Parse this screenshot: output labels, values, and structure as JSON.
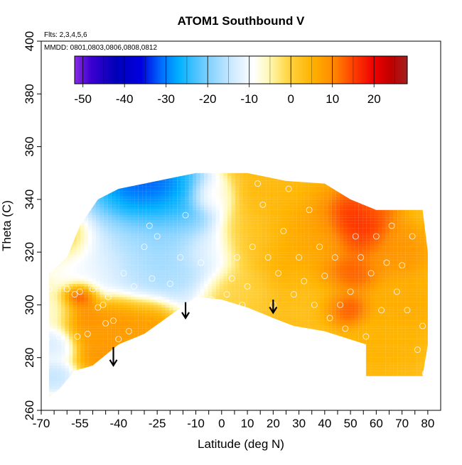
{
  "chart_data": {
    "type": "heatmap",
    "title": "ATOM1 Southbound V",
    "subtitle_flights": "Flts: 2,3,4,5,6",
    "subtitle_dates": "MMDD: 0801,0803,0806,0808,0812",
    "xlabel": "Latitude (deg N)",
    "ylabel": "Theta (C)",
    "xlim": [
      -70,
      85
    ],
    "ylim": [
      260,
      400
    ],
    "x_tick_labels": [
      "-70",
      "-55",
      "-40",
      "-25",
      "-10",
      "0",
      "10",
      "20",
      "30",
      "40",
      "50",
      "60",
      "70",
      "80"
    ],
    "y_tick_labels": [
      "260",
      "280",
      "300",
      "320",
      "340",
      "360",
      "380",
      "400"
    ],
    "colorbar": {
      "range": [
        -52,
        28
      ],
      "tick_labels": [
        "-50",
        "-40",
        "-30",
        "-20",
        "-10",
        "0",
        "10",
        "20"
      ],
      "stops": [
        {
          "value": -52,
          "color": "#8a2be2"
        },
        {
          "value": -48,
          "color": "#3a00d0"
        },
        {
          "value": -42,
          "color": "#0000b8"
        },
        {
          "value": -36,
          "color": "#0000e0"
        },
        {
          "value": -31,
          "color": "#0070ff"
        },
        {
          "value": -27,
          "color": "#00b0ff"
        },
        {
          "value": -20,
          "color": "#7fd0ff"
        },
        {
          "value": -14,
          "color": "#cfeaff"
        },
        {
          "value": -9,
          "color": "#ffffff"
        },
        {
          "value": -5,
          "color": "#fff7b0"
        },
        {
          "value": -1,
          "color": "#ffd84a"
        },
        {
          "value": 5,
          "color": "#ffb300"
        },
        {
          "value": 10,
          "color": "#ff8c00"
        },
        {
          "value": 15,
          "color": "#ff4000"
        },
        {
          "value": 20,
          "color": "#ee0000"
        },
        {
          "value": 24,
          "color": "#c00000"
        },
        {
          "value": 28,
          "color": "#a02020"
        }
      ]
    },
    "field_outline": [
      [
        -67,
        265
      ],
      [
        -67,
        312
      ],
      [
        -60,
        318
      ],
      [
        -55,
        330
      ],
      [
        -48,
        340
      ],
      [
        -40,
        344
      ],
      [
        -30,
        346
      ],
      [
        -20,
        348
      ],
      [
        -10,
        350
      ],
      [
        10,
        350
      ],
      [
        25,
        347
      ],
      [
        40,
        346
      ],
      [
        50,
        340
      ],
      [
        60,
        336
      ],
      [
        70,
        336
      ],
      [
        78,
        336
      ],
      [
        80,
        320
      ],
      [
        80,
        305
      ],
      [
        80,
        295
      ],
      [
        80,
        285
      ],
      [
        78,
        273
      ],
      [
        56,
        273
      ],
      [
        56,
        285
      ],
      [
        40,
        290
      ],
      [
        28,
        292
      ],
      [
        20,
        295
      ],
      [
        10,
        299
      ],
      [
        0,
        302
      ],
      [
        -10,
        303
      ],
      [
        -20,
        296
      ],
      [
        -30,
        289
      ],
      [
        -40,
        285
      ],
      [
        -50,
        277
      ],
      [
        -57,
        275
      ],
      [
        -63,
        268
      ]
    ],
    "features": [
      {
        "lat": -30,
        "theta": 343,
        "value": -40,
        "r": 14
      },
      {
        "lat": -35,
        "theta": 339,
        "value": -30,
        "r": 15
      },
      {
        "lat": -22,
        "theta": 338,
        "value": -28,
        "r": 16
      },
      {
        "lat": -25,
        "theta": 328,
        "value": -22,
        "r": 22
      },
      {
        "lat": -30,
        "theta": 318,
        "value": -18,
        "r": 22
      },
      {
        "lat": -18,
        "theta": 318,
        "value": -17,
        "r": 18
      },
      {
        "lat": -42,
        "theta": 322,
        "value": -14,
        "r": 22
      },
      {
        "lat": -52,
        "theta": 315,
        "value": -8,
        "r": 16
      },
      {
        "lat": -66,
        "theta": 285,
        "value": -14,
        "r": 8
      },
      {
        "lat": -64,
        "theta": 296,
        "value": -8,
        "r": 8
      },
      {
        "lat": -66,
        "theta": 272,
        "value": -16,
        "r": 7
      },
      {
        "lat": -55,
        "theta": 303,
        "value": 22,
        "r": 6
      },
      {
        "lat": -55,
        "theta": 296,
        "value": 12,
        "r": 8
      },
      {
        "lat": -50,
        "theta": 290,
        "value": 8,
        "r": 10
      },
      {
        "lat": -42,
        "theta": 296,
        "value": 10,
        "r": 10
      },
      {
        "lat": -30,
        "theta": 294,
        "value": 9,
        "r": 10
      },
      {
        "lat": -45,
        "theta": 282,
        "value": 9,
        "r": 8
      },
      {
        "lat": -8,
        "theta": 320,
        "value": -8,
        "r": 10
      },
      {
        "lat": -5,
        "theta": 340,
        "value": -6,
        "r": 8
      },
      {
        "lat": 10,
        "theta": 325,
        "value": 2,
        "r": 14
      },
      {
        "lat": 20,
        "theta": 340,
        "value": 4,
        "r": 14
      },
      {
        "lat": 30,
        "theta": 320,
        "value": 6,
        "r": 18
      },
      {
        "lat": 40,
        "theta": 330,
        "value": 8,
        "r": 16
      },
      {
        "lat": 35,
        "theta": 300,
        "value": 3,
        "r": 16
      },
      {
        "lat": 50,
        "theta": 333,
        "value": 22,
        "r": 10
      },
      {
        "lat": 53,
        "theta": 326,
        "value": 18,
        "r": 10
      },
      {
        "lat": 48,
        "theta": 312,
        "value": 15,
        "r": 10
      },
      {
        "lat": 47,
        "theta": 298,
        "value": 17,
        "r": 8
      },
      {
        "lat": 55,
        "theta": 336,
        "value": 12,
        "r": 10
      },
      {
        "lat": 65,
        "theta": 320,
        "value": 9,
        "r": 12
      },
      {
        "lat": 70,
        "theta": 300,
        "value": 6,
        "r": 12
      },
      {
        "lat": 62,
        "theta": 285,
        "value": 5,
        "r": 12
      },
      {
        "lat": 5,
        "theta": 305,
        "value": 0,
        "r": 12
      },
      {
        "lat": -60,
        "theta": 325,
        "value": 8,
        "r": 10
      }
    ],
    "base_value": 3,
    "observations": [
      [
        -68,
        287
      ],
      [
        -67,
        306
      ],
      [
        -65,
        312
      ],
      [
        -63,
        288
      ],
      [
        -60,
        306
      ],
      [
        -57,
        304
      ],
      [
        -56,
        288
      ],
      [
        -55,
        305
      ],
      [
        -52,
        289
      ],
      [
        -50,
        306
      ],
      [
        -48,
        299
      ],
      [
        -46,
        300
      ],
      [
        -45,
        293
      ],
      [
        -44,
        303
      ],
      [
        -42,
        294
      ],
      [
        -40,
        287
      ],
      [
        -38,
        312
      ],
      [
        -36,
        290
      ],
      [
        -34,
        307
      ],
      [
        -30,
        322
      ],
      [
        -28,
        330
      ],
      [
        -27,
        310
      ],
      [
        -25,
        326
      ],
      [
        -24,
        302
      ],
      [
        -22,
        292
      ],
      [
        -20,
        308
      ],
      [
        -16,
        318
      ],
      [
        -14,
        334
      ],
      [
        -10,
        301
      ],
      [
        -8,
        316
      ],
      [
        -4,
        302
      ],
      [
        0,
        299
      ],
      [
        2,
        304
      ],
      [
        4,
        310
      ],
      [
        6,
        318
      ],
      [
        8,
        300
      ],
      [
        10,
        307
      ],
      [
        12,
        322
      ],
      [
        14,
        346
      ],
      [
        16,
        338
      ],
      [
        18,
        318
      ],
      [
        20,
        300
      ],
      [
        22,
        312
      ],
      [
        24,
        328
      ],
      [
        26,
        344
      ],
      [
        28,
        304
      ],
      [
        30,
        318
      ],
      [
        32,
        309
      ],
      [
        34,
        336
      ],
      [
        36,
        300
      ],
      [
        38,
        322
      ],
      [
        40,
        311
      ],
      [
        42,
        295
      ],
      [
        44,
        318
      ],
      [
        46,
        300
      ],
      [
        48,
        291
      ],
      [
        50,
        305
      ],
      [
        52,
        326
      ],
      [
        54,
        318
      ],
      [
        56,
        288
      ],
      [
        58,
        312
      ],
      [
        60,
        326
      ],
      [
        62,
        298
      ],
      [
        64,
        316
      ],
      [
        66,
        330
      ],
      [
        68,
        305
      ],
      [
        70,
        315
      ],
      [
        72,
        298
      ],
      [
        74,
        326
      ],
      [
        76,
        283
      ],
      [
        78,
        292
      ],
      [
        79,
        274
      ]
    ],
    "arrows": [
      {
        "lat": -42,
        "theta_top": 284,
        "theta_bottom": 277
      },
      {
        "lat": -14,
        "theta_top": 301,
        "theta_bottom": 295
      },
      {
        "lat": 20,
        "theta_top": 302,
        "theta_bottom": 297
      }
    ]
  }
}
